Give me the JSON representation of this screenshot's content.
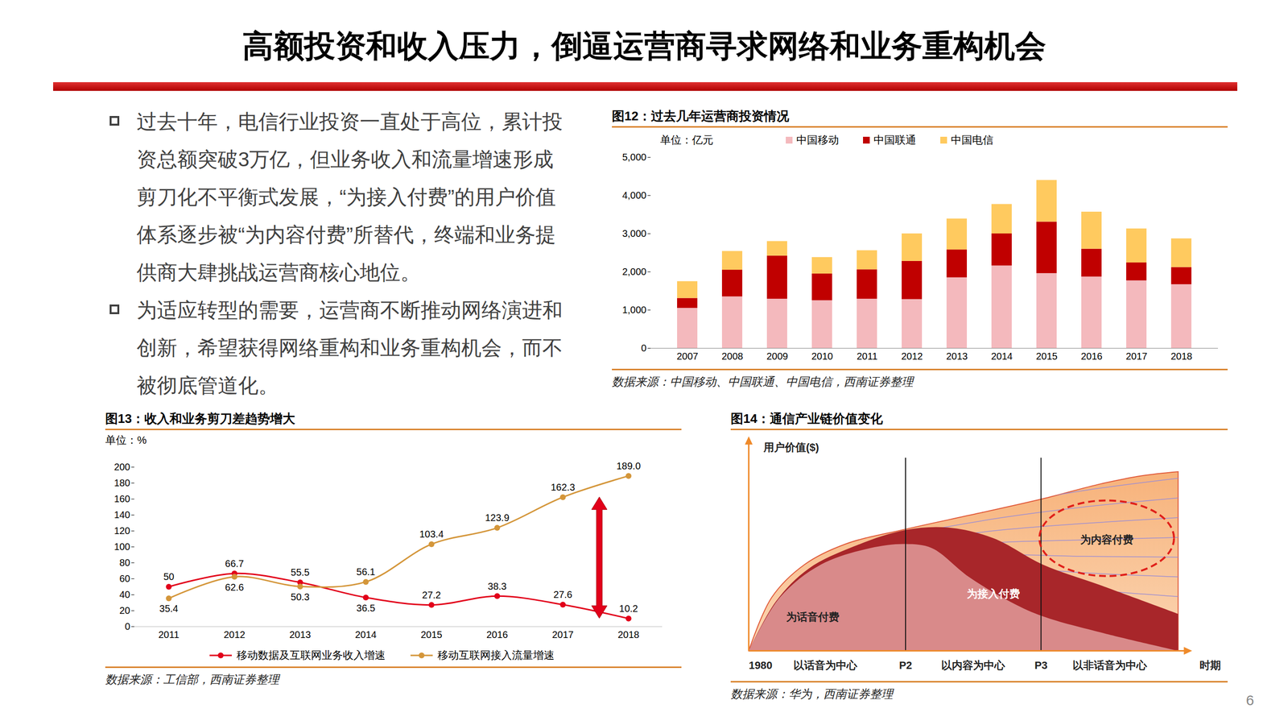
{
  "header": {
    "title": "高额投资和收入压力，倒逼运营商寻求网络和业务重构机会",
    "page": "6"
  },
  "text": {
    "bullets": [
      "过去十年，电信行业投资一直处于高位，累计投资总额突破3万亿，但业务收入和流量增速形成剪刀化不平衡式发展，“为接入付费”的用户价值体系逐步被“为内容付费”所替代，终端和业务提供商大肆挑战运营商核心地位。",
      "为适应转型的需要，运营商不断推动网络演进和创新，希望获得网络重构和业务重构机会，而不被彻底管道化。"
    ]
  },
  "chart_data": [
    {
      "type": "bar",
      "title": "图12：过去几年运营商投资情况",
      "ylabel": "单位：亿元",
      "source": "数据来源：中国移动、中国联通、中国电信，西南证券整理",
      "categories": [
        "2007",
        "2008",
        "2009",
        "2010",
        "2011",
        "2012",
        "2013",
        "2014",
        "2015",
        "2016",
        "2017",
        "2018"
      ],
      "series": [
        {
          "name": "中国移动",
          "color": "#f4b9bd",
          "values": [
            1050,
            1350,
            1290,
            1250,
            1290,
            1280,
            1850,
            2160,
            1960,
            1870,
            1770,
            1670
          ]
        },
        {
          "name": "中国联通",
          "color": "#c00000",
          "values": [
            260,
            700,
            1130,
            700,
            770,
            1000,
            730,
            840,
            1350,
            730,
            470,
            450
          ]
        },
        {
          "name": "中国电信",
          "color": "#ffca5f",
          "values": [
            440,
            490,
            380,
            430,
            500,
            720,
            810,
            770,
            1090,
            970,
            890,
            750
          ]
        }
      ],
      "stacked": true,
      "legend": "top",
      "grid": false,
      "ylim": [
        0,
        5000
      ],
      "yticks": [
        0,
        {
          "value": 1000,
          "label": "1,000"
        },
        {
          "value": 2000,
          "label": "2,000"
        },
        {
          "value": 3000,
          "label": "3,000"
        },
        {
          "value": 4000,
          "label": "4,000"
        },
        {
          "value": 5000,
          "label": "5,000"
        }
      ]
    },
    {
      "type": "line",
      "title": "图13：收入和业务剪刀差趋势增大",
      "ylabel": "单位：%",
      "source": "数据来源：工信部，西南证券整理",
      "categories": [
        "2011",
        "2012",
        "2013",
        "2014",
        "2015",
        "2016",
        "2017",
        "2018"
      ],
      "series": [
        {
          "name": "移动数据及互联网业务收入增速",
          "color": "#e2001a",
          "marker": "circle",
          "values": [
            50,
            66.7,
            55.5,
            36.5,
            27.2,
            38.3,
            27.6,
            10.2
          ]
        },
        {
          "name": "移动互联网接入流量增速",
          "color": "#d4963a",
          "marker": "circle",
          "values": [
            35.4,
            62.6,
            50.3,
            56.1,
            103.4,
            123.9,
            162.3,
            189
          ],
          "value_labels": [
            "35.4",
            "62.6",
            "50.3",
            "56.1",
            "103.4",
            "123.9",
            "162.3",
            "189.0"
          ]
        }
      ],
      "data_labels": true,
      "legend": "bottom",
      "grid": false,
      "ylim": [
        0,
        200
      ],
      "yticks": [
        0,
        20,
        40,
        60,
        80,
        100,
        120,
        140,
        160,
        180,
        200
      ]
    }
  ],
  "diagram": {
    "title": "图14：通信产业链价值变化",
    "source": "数据来源：华为，西南证券整理",
    "y_axis": "用户价值($)",
    "x_axis": "时期",
    "regions": [
      "为话音付费",
      "为接入付费",
      "为内容付费"
    ],
    "x_labels": [
      "1980",
      "以话音为中心",
      "P2",
      "以内容为中心",
      "P3",
      "以非话音为中心"
    ]
  }
}
